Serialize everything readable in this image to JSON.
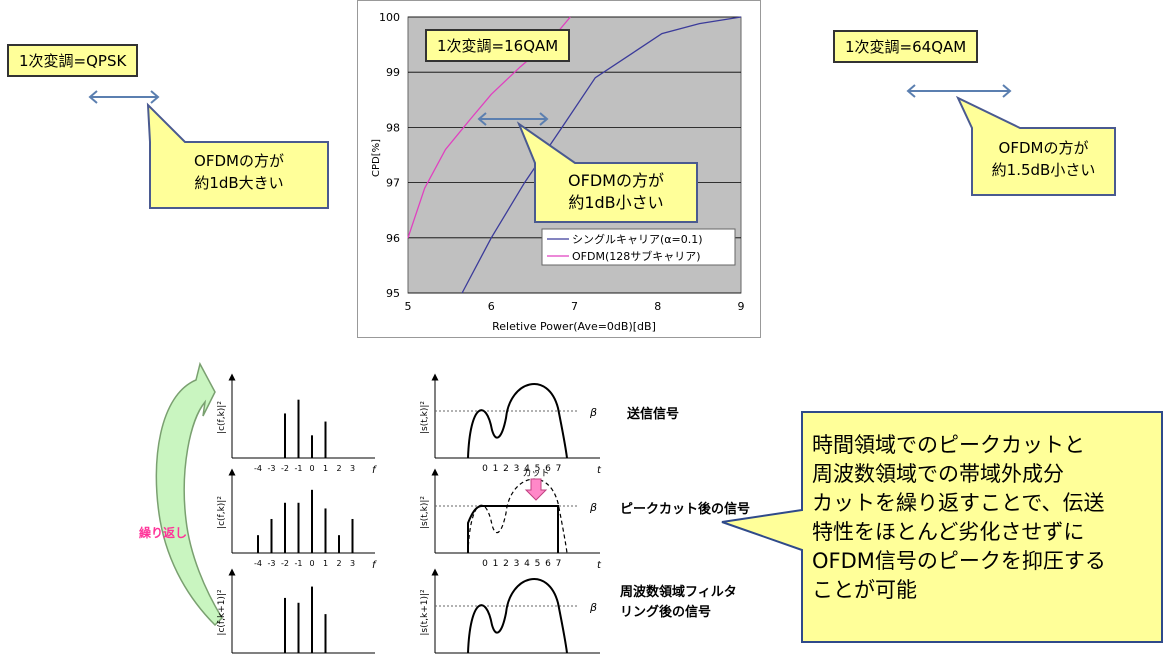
{
  "left_panel": {
    "title": "1次変調=QPSK",
    "callout_line1": "OFDMの方が",
    "callout_line2": "約1dB大きい"
  },
  "center_panel": {
    "title": "1次変調=16QAM",
    "callout_line1": "OFDMの方が",
    "callout_line2": "約1dB小さい"
  },
  "right_panel": {
    "title": "1次変調=64QAM",
    "callout_line1": "OFDMの方が",
    "callout_line2": "約1.5dB小さい"
  },
  "chart_data": {
    "type": "line",
    "xlabel": "Reletive Power(Ave=0dB)[dB]",
    "ylabel": "CPD[%]",
    "xlim": [
      5,
      9
    ],
    "ylim": [
      95,
      100
    ],
    "x_ticks": [
      "5",
      "6",
      "7",
      "8",
      "9"
    ],
    "y_ticks": [
      "95",
      "96",
      "97",
      "98",
      "99",
      "100"
    ],
    "grid": true,
    "legend_position": "bottom-right",
    "series": [
      {
        "name": "シングルキャリア(α=0.1)",
        "color": "#3b3b9a",
        "points": [
          [
            5.65,
            95.0
          ],
          [
            6.0,
            96.0
          ],
          [
            6.4,
            97.0
          ],
          [
            6.85,
            98.0
          ],
          [
            7.25,
            98.9
          ],
          [
            7.7,
            99.35
          ],
          [
            8.05,
            99.7
          ],
          [
            8.5,
            99.88
          ],
          [
            9.0,
            100.0
          ]
        ]
      },
      {
        "name": "OFDM(128サブキャリア)",
        "color": "#e040c0",
        "points": [
          [
            5.0,
            96.0
          ],
          [
            5.2,
            96.9
          ],
          [
            5.45,
            97.6
          ],
          [
            5.75,
            98.15
          ],
          [
            6.0,
            98.6
          ],
          [
            6.35,
            99.1
          ],
          [
            6.7,
            99.55
          ],
          [
            6.95,
            100.0
          ]
        ]
      }
    ]
  },
  "lower_diagram": {
    "loop_label": "繰り返し",
    "row1_label": "送信信号",
    "row2_label": "ピークカット後の信号",
    "row3_label_line1": "周波数領域フィルタ",
    "row3_label_line2": "リング後の信号",
    "cut_label": "カット",
    "beta": "β",
    "freq_axis": "f",
    "time_axis": "t",
    "freq_ticks": [
      "-4",
      "-3",
      "-2",
      "-1",
      "0",
      "1",
      "2",
      "3"
    ],
    "time_ticks": [
      "0",
      "1",
      "2",
      "3",
      "4",
      "5",
      "6",
      "7"
    ],
    "freq_ylabel_1": "|c(f,k)|²",
    "freq_ylabel_2": "|c(f,k)|²",
    "freq_ylabel_3": "|c(f,k+1)|²",
    "time_ylabel_1": "|s(t,k)|²",
    "time_ylabel_2": "|s(t,k)|²",
    "time_ylabel_3": "|s(t,k+1)|²",
    "spectrum_1": [
      0,
      0,
      0.55,
      0.72,
      0.28,
      0.45,
      0,
      0
    ],
    "spectrum_2": [
      0.22,
      0.42,
      0.62,
      0.62,
      0.78,
      0.55,
      0.22,
      0.42
    ],
    "spectrum_3": [
      0,
      0,
      0.68,
      0.62,
      0.82,
      0.48,
      0,
      0
    ]
  },
  "summary": {
    "line1": "時間領域でのピークカットと",
    "line2": "周波数領域での帯域外成分",
    "line3": "カットを繰り返すことで、伝送",
    "line4": "特性をほとんど劣化させずに",
    "line5": "OFDM信号のピークを抑圧する",
    "line6": "ことが可能"
  },
  "colors": {
    "callout_fill": "#ffff99",
    "arrow_blue": "#5b7fb0",
    "loop_arrow": "#c9f5c0",
    "loop_text": "#ff3399",
    "cut_arrow": "#ff88c8",
    "chart_bg": "#c0c0c0"
  }
}
